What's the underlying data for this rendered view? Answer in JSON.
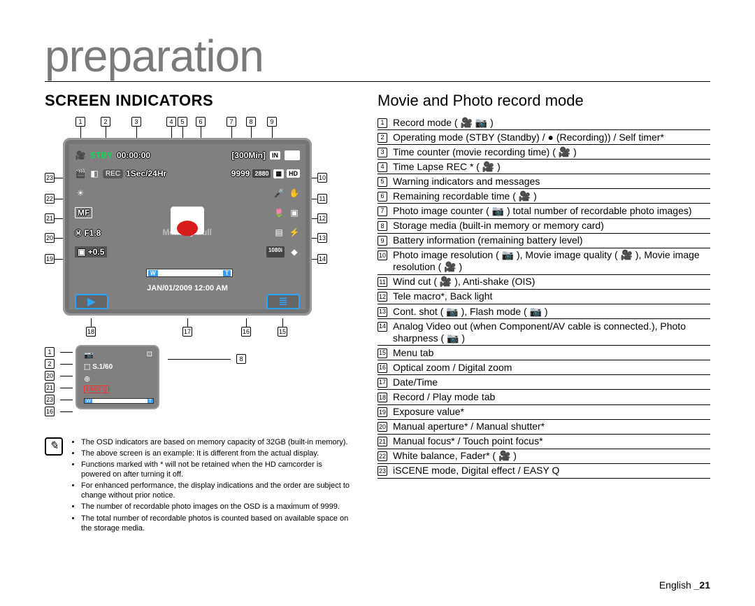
{
  "page": {
    "title": "preparation",
    "section": "SCREEN INDICATORS",
    "subsection": "Movie and Photo record mode",
    "footer_lang": "English",
    "footer_page": "_21"
  },
  "colors": {
    "title_gray": "#7a7a7a",
    "screen_bg": "#808080",
    "stby_green": "#00e050",
    "accent_blue": "#2aa4ff",
    "rec_red": "#d81b1b",
    "easyq_red": "#ff3333",
    "memfull_gray": "#bdbdbd"
  },
  "screen": {
    "row1": {
      "stby": "STBY",
      "timecounter": "00:00:00",
      "remaining": "[300Min]",
      "storage": "IN"
    },
    "row2": {
      "timelapse": "1Sec/24Hr",
      "photo_count": "9999",
      "res_badge1": "2880",
      "res_badge2": "HD"
    },
    "row3_left": "MF",
    "row4_left": "F1.8",
    "memory_full": "Memory Full",
    "row5_left": "+0.5",
    "analog_out": "1080i",
    "zoom_w": "W",
    "zoom_t": "T",
    "datetime": "JAN/01/2009 12:00 AM"
  },
  "callout_numbers": {
    "top": {
      "n1": "1",
      "n2": "2",
      "n3": "3",
      "n4": "4",
      "n5": "5",
      "n6": "6",
      "n7": "7",
      "n8": "8",
      "n9": "9"
    },
    "right": {
      "n10": "10",
      "n11": "11",
      "n12": "12",
      "n13": "13",
      "n14": "14"
    },
    "left": {
      "n23": "23",
      "n22": "22",
      "n21": "21",
      "n20": "20",
      "n19": "19"
    },
    "bottom": {
      "n18": "18",
      "n17": "17",
      "n16": "16",
      "n15": "15"
    }
  },
  "mini": {
    "left_nums": {
      "a": "1",
      "b": "2",
      "c": "20",
      "d": "21",
      "e": "23",
      "f": "16"
    },
    "right_num": "8",
    "shutter": "S.1/60",
    "easyq": "EASY Q",
    "zoom_w": "W",
    "zoom_t": "T"
  },
  "notes": [
    "The OSD indicators are based on memory capacity of 32GB (built-in memory).",
    "The above screen is an example: It is different from the actual display.",
    "Functions marked with * will not be retained when the HD camcorder is powered on after turning it off.",
    "For enhanced performance, the display indications and the order are subject to change without prior notice.",
    "The number of recordable photo images on the OSD is a maximum of 9999.",
    "The total number of recordable photos is counted based on available space on the storage media."
  ],
  "legend": [
    {
      "n": "1",
      "t": "Record mode ( 🎥 📷 )"
    },
    {
      "n": "2",
      "t": "Operating mode (STBY (Standby) / ● (Recording)) / Self timer*"
    },
    {
      "n": "3",
      "t": "Time counter (movie recording time) ( 🎥 )"
    },
    {
      "n": "4",
      "t": "Time Lapse REC * ( 🎥 )"
    },
    {
      "n": "5",
      "t": "Warning indicators and messages"
    },
    {
      "n": "6",
      "t": "Remaining recordable time ( 🎥 )"
    },
    {
      "n": "7",
      "t": "Photo image counter ( 📷 ) total number of recordable photo images)"
    },
    {
      "n": "8",
      "t": "Storage media (built-in memory or memory card)"
    },
    {
      "n": "9",
      "t": "Battery information (remaining battery level)"
    },
    {
      "n": "10",
      "t": "Photo image resolution ( 📷 ), Movie image quality ( 🎥 ), Movie image resolution ( 🎥 )"
    },
    {
      "n": "11",
      "t": "Wind cut ( 🎥 ), Anti-shake (OIS)"
    },
    {
      "n": "12",
      "t": "Tele macro*, Back light"
    },
    {
      "n": "13",
      "t": "Cont. shot ( 📷 ), Flash mode ( 📷 )"
    },
    {
      "n": "14",
      "t": "Analog Video out (when Component/AV cable is connected.), Photo sharpness ( 📷 )"
    },
    {
      "n": "15",
      "t": "Menu tab"
    },
    {
      "n": "16",
      "t": "Optical zoom / Digital zoom"
    },
    {
      "n": "17",
      "t": "Date/Time"
    },
    {
      "n": "18",
      "t": "Record / Play mode tab"
    },
    {
      "n": "19",
      "t": "Exposure value*"
    },
    {
      "n": "20",
      "t": "Manual aperture* / Manual shutter*"
    },
    {
      "n": "21",
      "t": "Manual focus* / Touch point focus*"
    },
    {
      "n": "22",
      "t": "White balance, Fader* ( 🎥 )"
    },
    {
      "n": "23",
      "t": "iSCENE mode, Digital effect / EASY Q"
    }
  ]
}
